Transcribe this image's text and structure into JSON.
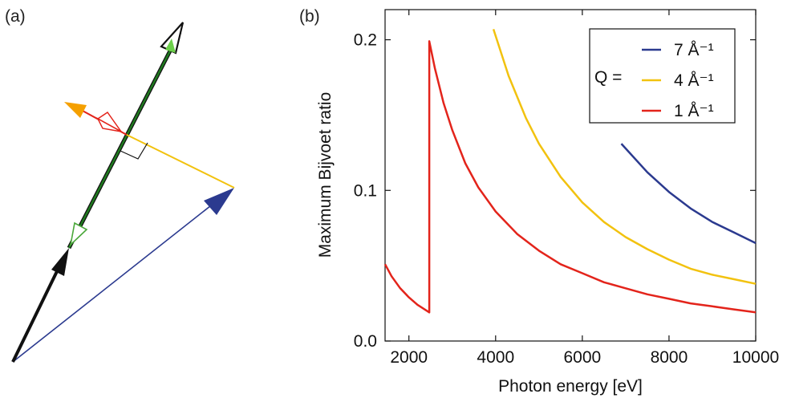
{
  "panels": {
    "a_label": "(a)",
    "b_label": "(b)"
  },
  "diagram": {
    "colors": {
      "black": "#111111",
      "blue": "#2b3a8f",
      "green": "#1f7a1f",
      "green_light": "#6ccf4a",
      "red": "#e3241b",
      "yellow": "#f2c20f",
      "orange": "#f5a000"
    }
  },
  "chart_data": {
    "type": "line",
    "xlabel": "Photon energy [eV]",
    "ylabel": "Maximum Bijvoet ratio",
    "xlim": [
      1450,
      10000
    ],
    "ylim": [
      0.0,
      0.22
    ],
    "xticks": [
      2000,
      4000,
      6000,
      8000,
      10000
    ],
    "xtick_labels": [
      "2000",
      "4000",
      "6000",
      "8000",
      "10000"
    ],
    "yticks": [
      0.0,
      0.1,
      0.2
    ],
    "ytick_labels": [
      "0.0",
      "0.1",
      "0.2"
    ],
    "grid": false,
    "legend": {
      "position": "top-right",
      "prefix": "Q ="
    },
    "series": [
      {
        "name": "7 Å⁻¹",
        "color": "#2b3a8f",
        "x": [
          6900,
          7500,
          8000,
          8500,
          9000,
          9500,
          10000
        ],
        "y": [
          0.131,
          0.112,
          0.099,
          0.088,
          0.079,
          0.072,
          0.065
        ]
      },
      {
        "name": "4 Å⁻¹",
        "color": "#f2c20f",
        "x": [
          3950,
          4300,
          4700,
          5000,
          5500,
          6000,
          6500,
          7000,
          7500,
          8000,
          8500,
          9000,
          9500,
          10000
        ],
        "y": [
          0.207,
          0.176,
          0.148,
          0.131,
          0.109,
          0.092,
          0.079,
          0.069,
          0.061,
          0.054,
          0.048,
          0.044,
          0.041,
          0.038
        ]
      },
      {
        "name": "1 Å⁻¹",
        "color": "#e3241b",
        "x": [
          1450,
          1600,
          1800,
          2000,
          2200,
          2470,
          2470,
          2600,
          2800,
          3000,
          3300,
          3600,
          4000,
          4500,
          5000,
          5500,
          6000,
          6500,
          7000,
          7500,
          8000,
          8500,
          9000,
          9500,
          10000
        ],
        "y": [
          0.051,
          0.043,
          0.035,
          0.029,
          0.024,
          0.019,
          0.199,
          0.181,
          0.158,
          0.14,
          0.118,
          0.102,
          0.086,
          0.071,
          0.06,
          0.051,
          0.045,
          0.039,
          0.035,
          0.031,
          0.028,
          0.025,
          0.023,
          0.021,
          0.019
        ]
      }
    ]
  }
}
